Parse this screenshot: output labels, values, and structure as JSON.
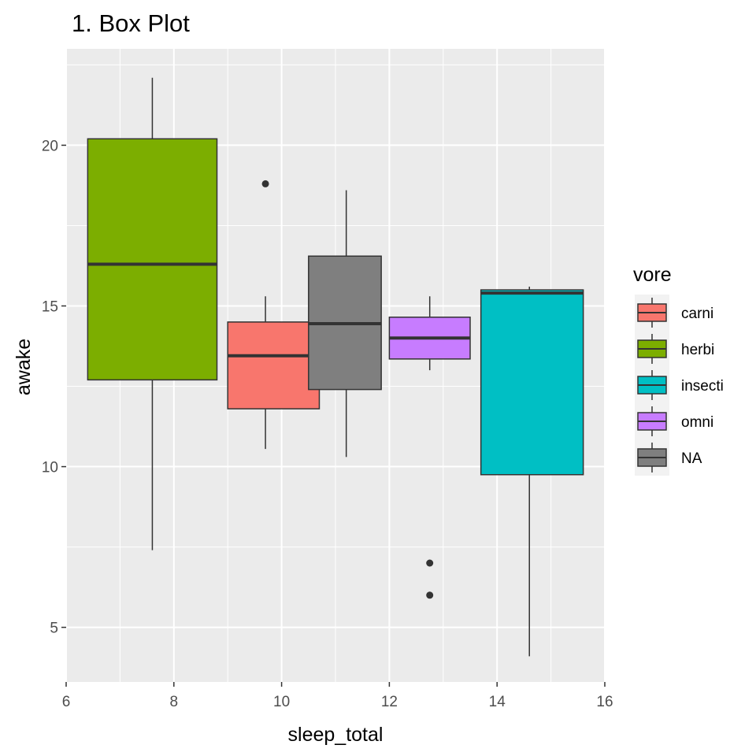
{
  "chart_data": {
    "type": "box",
    "title": "1. Box Plot",
    "xlabel": "sleep_total",
    "ylabel": "awake",
    "xlim": [
      6,
      16
    ],
    "ylim": [
      3.3,
      23
    ],
    "x_ticks": [
      6,
      8,
      10,
      12,
      14,
      16
    ],
    "y_ticks": [
      5,
      10,
      15,
      20
    ],
    "grid": true,
    "legend": {
      "title": "vore",
      "position": "right"
    },
    "series": [
      {
        "name": "carni",
        "color": "#F8766D",
        "x_min": 9.0,
        "x_max": 10.7,
        "x_center": 9.7,
        "whisker_low": 10.55,
        "q1": 11.8,
        "median": 13.45,
        "q3": 14.5,
        "whisker_high": 15.3,
        "outliers": [
          18.8
        ]
      },
      {
        "name": "herbi",
        "color": "#7CAE00",
        "x_min": 6.4,
        "x_max": 8.8,
        "x_center": 7.6,
        "whisker_low": 7.4,
        "q1": 12.7,
        "median": 16.3,
        "q3": 20.2,
        "whisker_high": 22.1,
        "outliers": []
      },
      {
        "name": "insecti",
        "color": "#00BFC4",
        "x_min": 13.7,
        "x_max": 15.6,
        "x_center": 14.6,
        "whisker_low": 4.1,
        "q1": 9.75,
        "median": 15.4,
        "q3": 15.5,
        "whisker_high": 15.6,
        "outliers": []
      },
      {
        "name": "omni",
        "color": "#C77CFF",
        "x_min": 12.0,
        "x_max": 13.5,
        "x_center": 12.75,
        "whisker_low": 13.0,
        "q1": 13.35,
        "median": 14.0,
        "q3": 14.65,
        "whisker_high": 15.3,
        "outliers": [
          7.0,
          6.0
        ]
      },
      {
        "name": "NA",
        "color": "#7F7F7F",
        "x_min": 10.5,
        "x_max": 11.85,
        "x_center": 11.2,
        "whisker_low": 10.3,
        "q1": 12.4,
        "median": 14.45,
        "q3": 16.55,
        "whisker_high": 18.6,
        "outliers": []
      }
    ],
    "draw_order": [
      "herbi",
      "carni",
      "NA",
      "omni",
      "insecti"
    ]
  }
}
